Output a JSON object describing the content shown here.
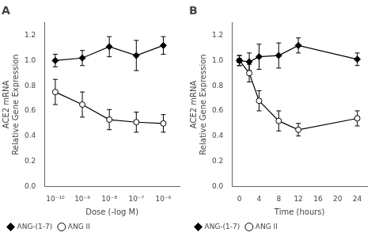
{
  "chart_data": [
    {
      "type": "line",
      "title": "A",
      "xlabel": "Dose (-log M)",
      "ylabel": "ACE2 mRNA\nRelative Gene Expression",
      "log": "x",
      "x": [
        1e-10,
        1e-09,
        1e-08,
        1e-07,
        1e-06
      ],
      "xlim": [
        4e-11,
        4e-06
      ],
      "xticks": [
        {
          "value": 1e-10,
          "label": "10⁻¹⁰"
        },
        {
          "value": 1e-09,
          "label": "10⁻⁹"
        },
        {
          "value": 1e-08,
          "label": "10⁻⁸"
        },
        {
          "value": 1e-07,
          "label": "10⁻⁷"
        },
        {
          "value": 1e-06,
          "label": "10⁻⁶"
        }
      ],
      "ylim": [
        0,
        1.3
      ],
      "yticks": [
        {
          "value": 0,
          "label": "0.0"
        },
        0.2,
        0.4,
        0.6,
        0.8,
        {
          "value": 1,
          "label": "1.0"
        },
        1.2
      ],
      "grid": false,
      "legend": "lower left",
      "series": [
        {
          "name": "ANG-(1-7)",
          "color": "#000000",
          "marker": "diamond",
          "values": [
            1.0,
            1.02,
            1.11,
            1.04,
            1.12
          ],
          "yerr": [
            0.05,
            0.06,
            0.08,
            0.12,
            0.07
          ]
        },
        {
          "name": "ANG II",
          "color": "#000000",
          "marker": "circle_open",
          "values": [
            0.75,
            0.65,
            0.53,
            0.51,
            0.5
          ],
          "yerr": [
            0.1,
            0.1,
            0.08,
            0.08,
            0.07
          ]
        }
      ]
    },
    {
      "type": "line",
      "title": "B",
      "xlabel": "Time (hours)",
      "ylabel": "ACE2 mRNA\nRelative Gene Expression",
      "x": [
        0,
        2,
        4,
        8,
        12,
        24
      ],
      "xlim": [
        -1.5,
        26
      ],
      "xticks": [
        0,
        4,
        8,
        12,
        16,
        20,
        24
      ],
      "ylim": [
        0,
        1.3
      ],
      "yticks": [
        {
          "value": 0,
          "label": "0.0"
        },
        0.2,
        0.4,
        0.6,
        0.8,
        {
          "value": 1,
          "label": "1.0"
        },
        1.2
      ],
      "grid": false,
      "legend": "lower left",
      "series": [
        {
          "name": "ANG-(1-7)",
          "color": "#000000",
          "marker": "diamond",
          "values": [
            1.0,
            0.99,
            1.03,
            1.04,
            1.12,
            1.01
          ],
          "yerr": [
            0.04,
            0.07,
            0.1,
            0.1,
            0.06,
            0.05
          ]
        },
        {
          "name": "ANG II",
          "color": "#000000",
          "marker": "circle_open",
          "values": [
            1.0,
            0.9,
            0.68,
            0.52,
            0.45,
            0.54
          ],
          "yerr": [
            0.04,
            0.07,
            0.08,
            0.08,
            0.05,
            0.06
          ]
        }
      ]
    }
  ]
}
